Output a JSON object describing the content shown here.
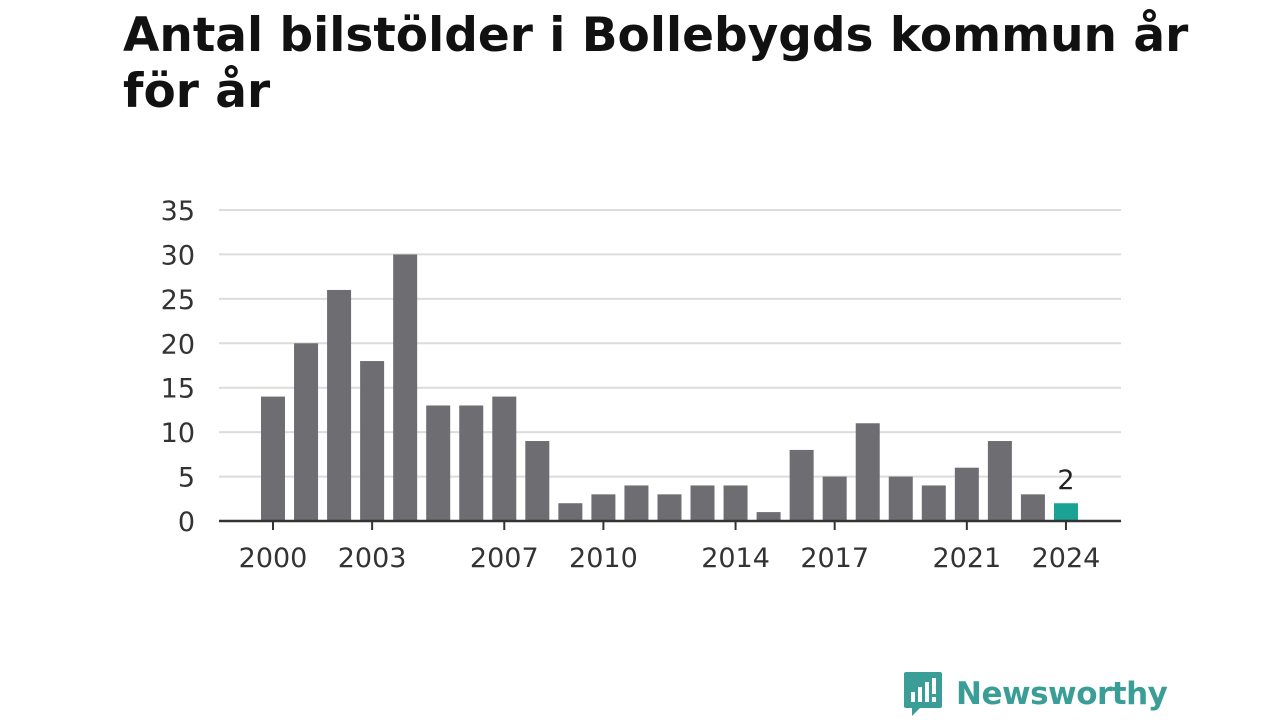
{
  "chart_data": {
    "type": "bar",
    "title": "Antal bilstölder i Bollebygds kommun år för år",
    "categories": [
      "2000",
      "2001",
      "2002",
      "2003",
      "2004",
      "2005",
      "2006",
      "2007",
      "2008",
      "2009",
      "2010",
      "2011",
      "2012",
      "2013",
      "2014",
      "2015",
      "2016",
      "2017",
      "2018",
      "2019",
      "2020",
      "2021",
      "2022",
      "2023",
      "2024"
    ],
    "values": [
      14,
      20,
      26,
      18,
      30,
      13,
      13,
      14,
      9,
      2,
      3,
      4,
      3,
      4,
      4,
      1,
      8,
      5,
      11,
      5,
      4,
      6,
      9,
      3,
      2
    ],
    "xticks": [
      "2000",
      "2003",
      "2007",
      "2010",
      "2014",
      "2017",
      "2021",
      "2024"
    ],
    "yticks": [
      "0",
      "5",
      "10",
      "15",
      "20",
      "25",
      "30",
      "35"
    ],
    "ylim": [
      0,
      35
    ],
    "grid": true,
    "highlight_index": 24,
    "highlight_label": "2",
    "colors": {
      "bar": "#6e6d72",
      "highlight": "#1aa395",
      "grid": "#dcdcdc",
      "axis": "#333333"
    }
  },
  "brand": {
    "name": "Newsworthy",
    "icon": "newsworthy-logo-icon",
    "color": "#3a9e96"
  }
}
